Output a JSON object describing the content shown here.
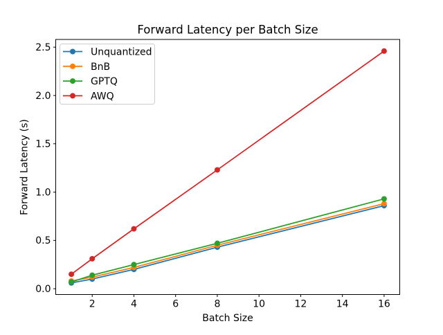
{
  "figure": {
    "background": "#ffffff",
    "axes_edge_color": "#000000",
    "legend_border_color": "#cccccc"
  },
  "chart_data": {
    "type": "line",
    "title": "Forward Latency per Batch Size",
    "xlabel": "Batch Size",
    "ylabel": "Forward Latency (s)",
    "x": [
      1,
      2,
      4,
      8,
      16
    ],
    "series": [
      {
        "name": "Unquantized",
        "color": "#1f77b4",
        "values": [
          0.06,
          0.1,
          0.2,
          0.43,
          0.86
        ]
      },
      {
        "name": "BnB",
        "color": "#ff7f0e",
        "values": [
          0.08,
          0.12,
          0.22,
          0.45,
          0.88
        ]
      },
      {
        "name": "GPTQ",
        "color": "#2ca02c",
        "values": [
          0.07,
          0.14,
          0.25,
          0.47,
          0.93
        ]
      },
      {
        "name": "AWQ",
        "color": "#d62728",
        "values": [
          0.15,
          0.31,
          0.62,
          1.23,
          2.46
        ]
      }
    ],
    "marker": "o",
    "grid": false,
    "legend_position": "upper left",
    "legend_labels": [
      "Unquantized",
      "BnB",
      "GPTQ",
      "AWQ"
    ],
    "xlim": [
      0.25,
      16.75
    ],
    "ylim": [
      -0.06,
      2.58
    ],
    "xticks": {
      "values": [
        2,
        4,
        6,
        8,
        10,
        12,
        14,
        16
      ],
      "labels": [
        "2",
        "4",
        "6",
        "8",
        "10",
        "12",
        "14",
        "16"
      ]
    },
    "yticks": {
      "values": [
        0,
        0.5,
        1.0,
        1.5,
        2.0,
        2.5
      ],
      "labels": [
        "0.0",
        "0.5",
        "1.0",
        "1.5",
        "2.0",
        "2.5"
      ]
    }
  }
}
